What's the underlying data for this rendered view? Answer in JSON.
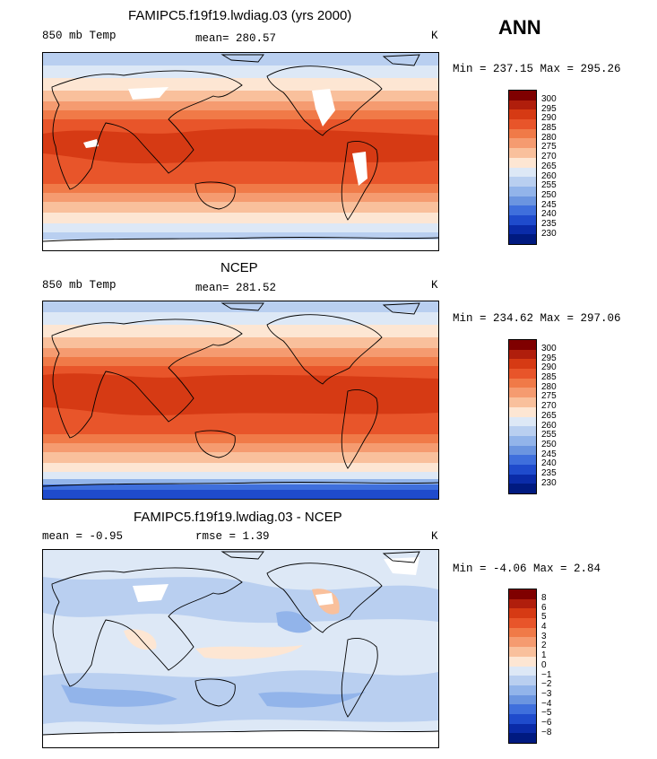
{
  "season": "ANN",
  "panels": [
    {
      "id": "model",
      "title": "FAMIPC5.f19f19.lwdiag.03 (yrs 2000)",
      "left_label": "850 mb Temp",
      "middle_label": "mean= 280.57",
      "right_label": "K",
      "minmax": "Min = 237.15 Max = 295.26",
      "mean": 280.57,
      "min": 237.15,
      "max": 295.26
    },
    {
      "id": "obs",
      "title": "NCEP",
      "left_label": "850 mb Temp",
      "middle_label": "mean= 281.52",
      "right_label": "K",
      "minmax": "Min = 234.62 Max = 297.06",
      "mean": 281.52,
      "min": 234.62,
      "max": 297.06
    },
    {
      "id": "diff",
      "title": "FAMIPC5.f19f19.lwdiag.03 - NCEP",
      "left_label": "mean =   -0.95",
      "middle_label": "rmse =    1.39",
      "right_label": "K",
      "minmax": "Min =  -4.06 Max =   2.84",
      "mean": -0.95,
      "rmse": 1.39,
      "min": -4.06,
      "max": 2.84
    }
  ],
  "colorbars": {
    "absolute": {
      "levels": [
        "300",
        "295",
        "290",
        "285",
        "280",
        "275",
        "270",
        "265",
        "260",
        "255",
        "250",
        "245",
        "240",
        "235",
        "230"
      ],
      "colors": [
        "#7f0000",
        "#b01e0c",
        "#d63a14",
        "#e8552a",
        "#f07a48",
        "#f59b70",
        "#f9c09c",
        "#fde6d3",
        "#dde8f6",
        "#b9cff0",
        "#92b4ea",
        "#6b95e0",
        "#3f6fdc",
        "#1f4bcc",
        "#0a2ba8",
        "#001a80"
      ]
    },
    "difference": {
      "levels": [
        "8",
        "6",
        "5",
        "4",
        "3",
        "2",
        "1",
        "0",
        "−1",
        "−2",
        "−3",
        "−4",
        "−5",
        "−6",
        "−8"
      ],
      "colors": [
        "#7f0000",
        "#b01e0c",
        "#d63a14",
        "#e8552a",
        "#f07a48",
        "#f59b70",
        "#f9c09c",
        "#fde6d3",
        "#dde8f6",
        "#b9cff0",
        "#92b4ea",
        "#6b95e0",
        "#3f6fdc",
        "#1f4bcc",
        "#0a2ba8",
        "#001a80"
      ]
    }
  },
  "chart_data": [
    {
      "type": "heatmap",
      "title": "FAMIPC5.f19f19.lwdiag.03 (yrs 2000)",
      "variable": "850 mb Temp",
      "units": "K",
      "mean": 280.57,
      "min": 237.15,
      "max": 295.26,
      "contour_levels": [
        230,
        235,
        240,
        245,
        250,
        255,
        260,
        265,
        270,
        275,
        280,
        285,
        290,
        295,
        300
      ]
    },
    {
      "type": "heatmap",
      "title": "NCEP",
      "variable": "850 mb Temp",
      "units": "K",
      "mean": 281.52,
      "min": 234.62,
      "max": 297.06,
      "contour_levels": [
        230,
        235,
        240,
        245,
        250,
        255,
        260,
        265,
        270,
        275,
        280,
        285,
        290,
        295,
        300
      ]
    },
    {
      "type": "heatmap",
      "title": "FAMIPC5.f19f19.lwdiag.03 - NCEP",
      "units": "K",
      "mean": -0.95,
      "rmse": 1.39,
      "min": -4.06,
      "max": 2.84,
      "contour_levels": [
        -8,
        -6,
        -5,
        -4,
        -3,
        -2,
        -1,
        0,
        1,
        2,
        3,
        4,
        5,
        6,
        8
      ]
    }
  ]
}
